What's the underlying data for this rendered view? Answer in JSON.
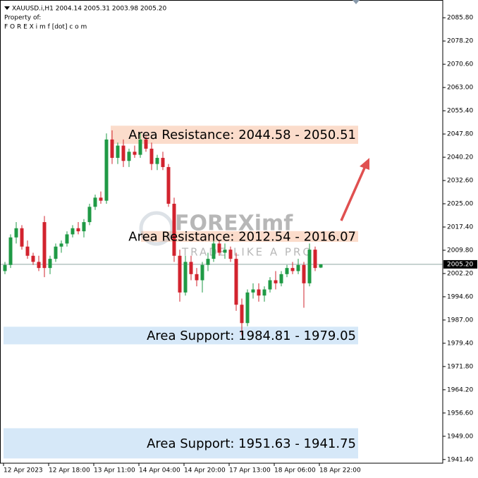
{
  "chart_data": {
    "type": "candlestick",
    "header": "XAUUSD.i,H1  2004.14 2005.31 2003.98 2005.20",
    "owner_label": "Property of:",
    "owner": "F O R E X i m f [dot] c o m",
    "watermark": "FOREXimf",
    "watermark_slogan": "TRADE LIKE A PRO",
    "categories": [
      "12 Apr 2023",
      null,
      null,
      null,
      null,
      null,
      null,
      null,
      "12 Apr 18:00",
      null,
      null,
      null,
      null,
      null,
      null,
      null,
      "13 Apr 11:00",
      null,
      null,
      null,
      null,
      null,
      null,
      null,
      "14 Apr 04:00",
      null,
      null,
      null,
      null,
      null,
      null,
      null,
      "14 Apr 20:00",
      null,
      null,
      null,
      null,
      null,
      null,
      null,
      "17 Apr 13:00",
      null,
      null,
      null,
      null,
      null,
      null,
      null,
      "18 Apr 06:00",
      null,
      null,
      null,
      null,
      null,
      null,
      null,
      "18 Apr 22:00"
    ],
    "open": [
      2003,
      2005,
      2014,
      2017,
      2011,
      2008,
      2006,
      2019,
      2004,
      2007,
      2011,
      2012,
      2015,
      2017,
      2016,
      2019,
      2024,
      2027,
      2026,
      2046,
      2040,
      2044,
      2039,
      2042,
      2041,
      2046,
      2043,
      2038,
      2040,
      2037,
      2025,
      2008,
      1996,
      2006,
      2002,
      2000,
      2005,
      2007,
      2012,
      2009,
      2010,
      2007,
      1992,
      1986,
      1996,
      1997,
      1995,
      1997,
      2000,
      1999,
      2002,
      2004,
      2003,
      2005,
      1999,
      2010,
      2004.14
    ],
    "high": [
      2006,
      2015,
      2019,
      2018,
      2013,
      2009,
      2008,
      2021,
      2008,
      2012,
      2013,
      2016,
      2018,
      2019,
      2020,
      2025,
      2028,
      2029,
      2048,
      2049,
      2045,
      2046,
      2043,
      2044,
      2048,
      2047,
      2045,
      2041,
      2042,
      2038,
      2027,
      2010,
      2008,
      2008,
      2004,
      2006,
      2009,
      2014,
      2013,
      2012,
      2011,
      2009,
      1994,
      1997,
      1999,
      1999,
      1998,
      2001,
      2003,
      2003,
      2005,
      2006,
      2007,
      2006,
      2012,
      2011,
      2005.31
    ],
    "low": [
      2002,
      2004,
      2012,
      2010,
      2007,
      2005,
      2003,
      2001,
      2002,
      2006,
      2009,
      2011,
      2014,
      2015,
      2014,
      2018,
      2023,
      2025,
      2025,
      2038,
      2038,
      2037,
      2037,
      2040,
      2040,
      2042,
      2036,
      2036,
      2036,
      2024,
      2006,
      1993,
      1995,
      2000,
      1998,
      1996,
      2003,
      2006,
      2008,
      2007,
      2006,
      1990,
      1982,
      1985,
      1994,
      1993,
      1993,
      1996,
      1997,
      1998,
      2001,
      2002,
      2002,
      1991,
      1998,
      2003,
      2003.98
    ],
    "close": [
      2005,
      2014,
      2017,
      2011,
      2008,
      2006,
      2004,
      2004,
      2007,
      2011,
      2012,
      2015,
      2017,
      2016,
      2019,
      2024,
      2027,
      2026,
      2046,
      2040,
      2044,
      2039,
      2042,
      2041,
      2046,
      2043,
      2038,
      2040,
      2037,
      2025,
      2008,
      1996,
      2006,
      2002,
      2000,
      2005,
      2007,
      2012,
      2009,
      2010,
      2007,
      1992,
      1986,
      1996,
      1997,
      1995,
      1997,
      2000,
      1999,
      2002,
      2004,
      2003,
      2005,
      1999,
      2010,
      2004,
      2005.2
    ],
    "up_color": "#1f9a45",
    "down_color": "#d2232e",
    "ylim": [
      1940.2,
      2091.6
    ],
    "yticks": [
      {
        "value": 2085.8,
        "label": "2085.80"
      },
      {
        "value": 2078.2,
        "label": "2078.20"
      },
      {
        "value": 2070.6,
        "label": "2070.60"
      },
      {
        "value": 2063.0,
        "label": "2063.00"
      },
      {
        "value": 2055.4,
        "label": "2055.40"
      },
      {
        "value": 2047.8,
        "label": "2047.80"
      },
      {
        "value": 2040.2,
        "label": "2040.20"
      },
      {
        "value": 2032.6,
        "label": "2032.60"
      },
      {
        "value": 2025.0,
        "label": "2025.00"
      },
      {
        "value": 2017.4,
        "label": "2017.40"
      },
      {
        "value": 2009.8,
        "label": "2009.80"
      },
      {
        "value": 2002.2,
        "label": "2002.20"
      },
      {
        "value": 1994.6,
        "label": "1994.60"
      },
      {
        "value": 1987.0,
        "label": "1987.00"
      },
      {
        "value": 1979.4,
        "label": "1979.40"
      },
      {
        "value": 1971.8,
        "label": "1971.80"
      },
      {
        "value": 1964.2,
        "label": "1964.20"
      },
      {
        "value": 1956.6,
        "label": "1956.60"
      },
      {
        "value": 1949.0,
        "label": "1949.00"
      },
      {
        "value": 1941.4,
        "label": "1941.40"
      }
    ],
    "last_price": {
      "value": 2005.2,
      "label": "2005.20"
    },
    "zones": [
      {
        "label": "Area Resistance: 2044.58 - 2050.51",
        "low": 2044.58,
        "high": 2050.51,
        "color": "#fbdccb"
      },
      {
        "label": "Area Resistance: 2012.54 - 2016.07",
        "low": 2012.54,
        "high": 2016.07,
        "color": "#fbdccb"
      },
      {
        "label": "Area Support: 1984.81 - 1979.05",
        "low": 1979.05,
        "high": 1984.81,
        "color": "#d6e8f8"
      },
      {
        "label": "Area Support: 1951.63 - 1941.75",
        "low": 1941.75,
        "high": 1951.63,
        "color": "#d6e8f8"
      }
    ]
  }
}
